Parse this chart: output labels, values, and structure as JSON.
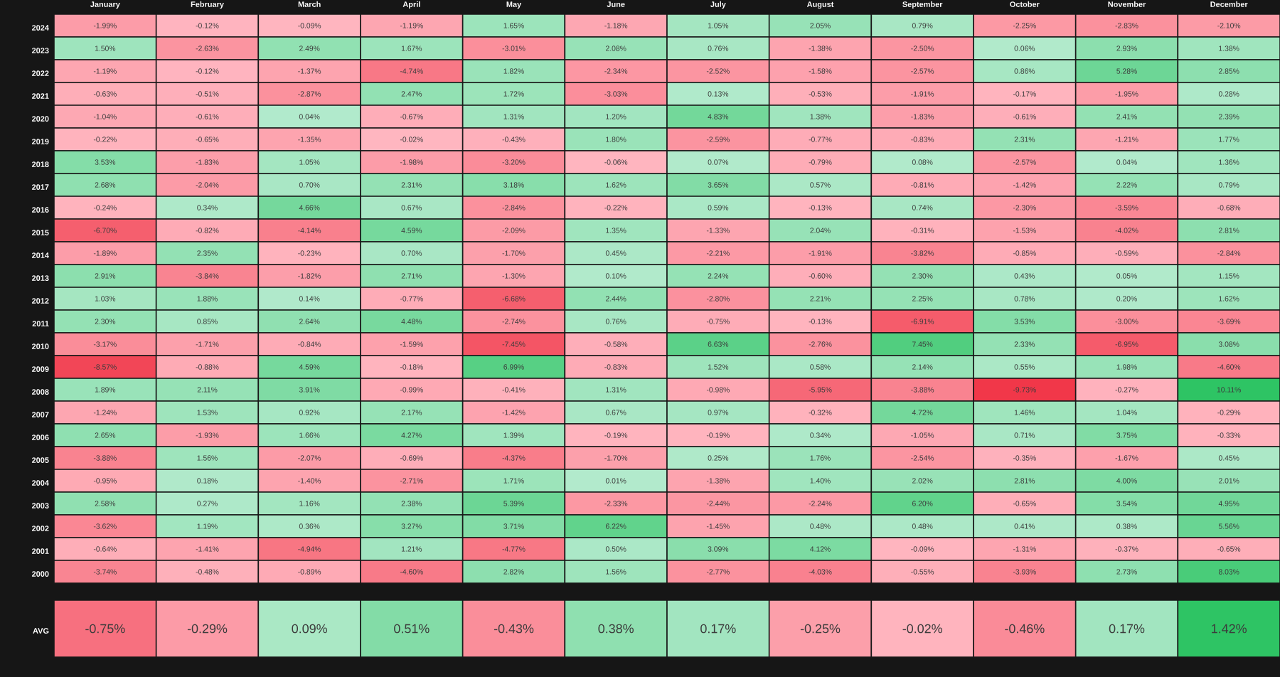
{
  "chart_data": [
    {
      "type": "heatmap",
      "categories": [
        "January",
        "February",
        "March",
        "April",
        "May",
        "June",
        "July",
        "August",
        "September",
        "October",
        "November",
        "December"
      ],
      "y_categories": [
        "2024",
        "2023",
        "2022",
        "2021",
        "2020",
        "2019",
        "2018",
        "2017",
        "2016",
        "2015",
        "2014",
        "2013",
        "2012",
        "2011",
        "2010",
        "2009",
        "2008",
        "2007",
        "2006",
        "2005",
        "2004",
        "2003",
        "2002",
        "2001",
        "2000"
      ],
      "cells": [
        [
          -1.99,
          -0.12,
          -0.09,
          -1.19,
          1.65,
          -1.18,
          1.05,
          2.05,
          0.79,
          -2.25,
          -2.83,
          -2.1
        ],
        [
          1.5,
          -2.63,
          2.49,
          1.67,
          -3.01,
          2.08,
          0.76,
          -1.38,
          -2.5,
          0.06,
          2.93,
          1.38
        ],
        [
          -1.19,
          -0.12,
          -1.37,
          -4.74,
          1.82,
          -2.34,
          -2.52,
          -1.58,
          -2.57,
          0.86,
          5.28,
          2.85
        ],
        [
          -0.63,
          -0.51,
          -2.87,
          2.47,
          1.72,
          -3.03,
          0.13,
          -0.53,
          -1.91,
          -0.17,
          -1.95,
          0.28
        ],
        [
          -1.04,
          -0.61,
          0.04,
          -0.67,
          1.31,
          1.2,
          4.83,
          1.38,
          -1.83,
          -0.61,
          2.41,
          2.39
        ],
        [
          -0.22,
          -0.65,
          -1.35,
          -0.02,
          -0.43,
          1.8,
          -2.59,
          -0.77,
          -0.83,
          2.31,
          -1.21,
          1.77
        ],
        [
          3.53,
          -1.83,
          1.05,
          -1.98,
          -3.2,
          -0.06,
          0.07,
          -0.79,
          0.08,
          -2.57,
          0.04,
          1.36
        ],
        [
          2.68,
          -2.04,
          0.7,
          2.31,
          3.18,
          1.62,
          3.65,
          0.57,
          -0.81,
          -1.42,
          2.22,
          0.79
        ],
        [
          -0.24,
          0.34,
          4.66,
          0.67,
          -2.84,
          -0.22,
          0.59,
          -0.13,
          0.74,
          -2.3,
          -3.59,
          -0.68
        ],
        [
          -6.7,
          -0.82,
          -4.14,
          4.59,
          -2.09,
          1.35,
          -1.33,
          2.04,
          -0.31,
          -1.53,
          -4.02,
          2.81
        ],
        [
          -1.89,
          2.35,
          -0.23,
          0.7,
          -1.7,
          0.45,
          -2.21,
          -1.91,
          -3.82,
          -0.85,
          -0.59,
          -2.84
        ],
        [
          2.91,
          -3.84,
          -1.82,
          2.71,
          -1.3,
          0.1,
          2.24,
          -0.6,
          2.3,
          0.43,
          0.05,
          1.15
        ],
        [
          1.03,
          1.88,
          0.14,
          -0.77,
          -6.68,
          2.44,
          -2.8,
          2.21,
          2.25,
          0.78,
          0.2,
          1.62
        ],
        [
          2.3,
          0.85,
          2.64,
          4.48,
          -2.74,
          0.76,
          -0.75,
          -0.13,
          -6.91,
          3.53,
          -3.0,
          -3.69
        ],
        [
          -3.17,
          -1.71,
          -0.84,
          -1.59,
          -7.45,
          -0.58,
          6.63,
          -2.76,
          7.45,
          2.33,
          -6.95,
          3.08
        ],
        [
          -8.57,
          -0.88,
          4.59,
          -0.18,
          6.99,
          -0.83,
          1.52,
          0.58,
          2.14,
          0.55,
          1.98,
          -4.6
        ],
        [
          1.89,
          2.11,
          3.91,
          -0.99,
          -0.41,
          1.31,
          -0.98,
          -5.95,
          -3.88,
          -9.73,
          -0.27,
          10.11
        ],
        [
          -1.24,
          1.53,
          0.92,
          2.17,
          -1.42,
          0.67,
          0.97,
          -0.32,
          4.72,
          1.46,
          1.04,
          -0.29
        ],
        [
          2.65,
          -1.93,
          1.66,
          4.27,
          1.39,
          -0.19,
          -0.19,
          0.34,
          -1.05,
          0.71,
          3.75,
          -0.33
        ],
        [
          -3.88,
          1.56,
          -2.07,
          -0.69,
          -4.37,
          -1.7,
          0.25,
          1.76,
          -2.54,
          -0.35,
          -1.67,
          0.45
        ],
        [
          -0.95,
          0.18,
          -1.4,
          -2.71,
          1.71,
          0.01,
          -1.38,
          1.4,
          2.02,
          2.81,
          4.0,
          2.01
        ],
        [
          2.58,
          0.27,
          1.16,
          2.38,
          5.39,
          -2.33,
          -2.44,
          -2.24,
          6.2,
          -0.65,
          3.54,
          4.95
        ],
        [
          -3.62,
          1.19,
          0.36,
          3.27,
          3.71,
          6.22,
          -1.45,
          0.48,
          0.48,
          0.41,
          0.38,
          5.56
        ],
        [
          -0.64,
          -1.41,
          -4.94,
          1.21,
          -4.77,
          0.5,
          3.09,
          4.12,
          -0.09,
          -1.31,
          -0.37,
          -0.65
        ],
        [
          -3.74,
          -0.48,
          -0.89,
          -4.6,
          2.82,
          1.56,
          -2.77,
          -4.03,
          -0.55,
          -3.93,
          2.73,
          8.03
        ]
      ],
      "cell_labels": [
        [
          "-1.99%",
          "-0.12%",
          "-0.09%",
          "-1.19%",
          "1.65%",
          "-1.18%",
          "1.05%",
          "2.05%",
          "0.79%",
          "-2.25%",
          "-2.83%",
          "-2.10%"
        ],
        [
          "1.50%",
          "-2.63%",
          "2.49%",
          "1.67%",
          "-3.01%",
          "2.08%",
          "0.76%",
          "-1.38%",
          "-2.50%",
          "0.06%",
          "2.93%",
          "1.38%"
        ],
        [
          "-1.19%",
          "-0.12%",
          "-1.37%",
          "-4.74%",
          "1.82%",
          "-2.34%",
          "-2.52%",
          "-1.58%",
          "-2.57%",
          "0.86%",
          "5.28%",
          "2.85%"
        ],
        [
          "-0.63%",
          "-0.51%",
          "-2.87%",
          "2.47%",
          "1.72%",
          "-3.03%",
          "0.13%",
          "-0.53%",
          "-1.91%",
          "-0.17%",
          "-1.95%",
          "0.28%"
        ],
        [
          "-1.04%",
          "-0.61%",
          "0.04%",
          "-0.67%",
          "1.31%",
          "1.20%",
          "4.83%",
          "1.38%",
          "-1.83%",
          "-0.61%",
          "2.41%",
          "2.39%"
        ],
        [
          "-0.22%",
          "-0.65%",
          "-1.35%",
          "-0.02%",
          "-0.43%",
          "1.80%",
          "-2.59%",
          "-0.77%",
          "-0.83%",
          "2.31%",
          "-1.21%",
          "1.77%"
        ],
        [
          "3.53%",
          "-1.83%",
          "1.05%",
          "-1.98%",
          "-3.20%",
          "-0.06%",
          "0.07%",
          "-0.79%",
          "0.08%",
          "-2.57%",
          "0.04%",
          "1.36%"
        ],
        [
          "2.68%",
          "-2.04%",
          "0.70%",
          "2.31%",
          "3.18%",
          "1.62%",
          "3.65%",
          "0.57%",
          "-0.81%",
          "-1.42%",
          "2.22%",
          "0.79%"
        ],
        [
          "-0.24%",
          "0.34%",
          "4.66%",
          "0.67%",
          "-2.84%",
          "-0.22%",
          "0.59%",
          "-0.13%",
          "0.74%",
          "-2.30%",
          "-3.59%",
          "-0.68%"
        ],
        [
          "-6.70%",
          "-0.82%",
          "-4.14%",
          "4.59%",
          "-2.09%",
          "1.35%",
          "-1.33%",
          "2.04%",
          "-0.31%",
          "-1.53%",
          "-4.02%",
          "2.81%"
        ],
        [
          "-1.89%",
          "2.35%",
          "-0.23%",
          "0.70%",
          "-1.70%",
          "0.45%",
          "-2.21%",
          "-1.91%",
          "-3.82%",
          "-0.85%",
          "-0.59%",
          "-2.84%"
        ],
        [
          "2.91%",
          "-3.84%",
          "-1.82%",
          "2.71%",
          "-1.30%",
          "0.10%",
          "2.24%",
          "-0.60%",
          "2.30%",
          "0.43%",
          "0.05%",
          "1.15%"
        ],
        [
          "1.03%",
          "1.88%",
          "0.14%",
          "-0.77%",
          "-6.68%",
          "2.44%",
          "-2.80%",
          "2.21%",
          "2.25%",
          "0.78%",
          "0.20%",
          "1.62%"
        ],
        [
          "2.30%",
          "0.85%",
          "2.64%",
          "4.48%",
          "-2.74%",
          "0.76%",
          "-0.75%",
          "-0.13%",
          "-6.91%",
          "3.53%",
          "-3.00%",
          "-3.69%"
        ],
        [
          "-3.17%",
          "-1.71%",
          "-0.84%",
          "-1.59%",
          "-7.45%",
          "-0.58%",
          "6.63%",
          "-2.76%",
          "7.45%",
          "2.33%",
          "-6.95%",
          "3.08%"
        ],
        [
          "-8.57%",
          "-0.88%",
          "4.59%",
          "-0.18%",
          "6.99%",
          "-0.83%",
          "1.52%",
          "0.58%",
          "2.14%",
          "0.55%",
          "1.98%",
          "-4.60%"
        ],
        [
          "1.89%",
          "2.11%",
          "3.91%",
          "-0.99%",
          "-0.41%",
          "1.31%",
          "-0.98%",
          "-5.95%",
          "-3.88%",
          "-9.73%",
          "-0.27%",
          "10.11%"
        ],
        [
          "-1.24%",
          "1.53%",
          "0.92%",
          "2.17%",
          "-1.42%",
          "0.67%",
          "0.97%",
          "-0.32%",
          "4.72%",
          "1.46%",
          "1.04%",
          "-0.29%"
        ],
        [
          "2.65%",
          "-1.93%",
          "1.66%",
          "4.27%",
          "1.39%",
          "-0.19%",
          "-0.19%",
          "0.34%",
          "-1.05%",
          "0.71%",
          "3.75%",
          "-0.33%"
        ],
        [
          "-3.88%",
          "1.56%",
          "-2.07%",
          "-0.69%",
          "-4.37%",
          "-1.70%",
          "0.25%",
          "1.76%",
          "-2.54%",
          "-0.35%",
          "-1.67%",
          "0.45%"
        ],
        [
          "-0.95%",
          "0.18%",
          "-1.40%",
          "-2.71%",
          "1.71%",
          "0.01%",
          "-1.38%",
          "1.40%",
          "2.02%",
          "2.81%",
          "4.00%",
          "2.01%"
        ],
        [
          "2.58%",
          "0.27%",
          "1.16%",
          "2.38%",
          "5.39%",
          "-2.33%",
          "-2.44%",
          "-2.24%",
          "6.20%",
          "-0.65%",
          "3.54%",
          "4.95%"
        ],
        [
          "-3.62%",
          "1.19%",
          "0.36%",
          "3.27%",
          "3.71%",
          "6.22%",
          "-1.45%",
          "0.48%",
          "0.48%",
          "0.41%",
          "0.38%",
          "5.56%"
        ],
        [
          "-0.64%",
          "-1.41%",
          "-4.94%",
          "1.21%",
          "-4.77%",
          "0.50%",
          "3.09%",
          "4.12%",
          "-0.09%",
          "-1.31%",
          "-0.37%",
          "-0.65%"
        ],
        [
          "-3.74%",
          "-0.48%",
          "-0.89%",
          "-4.60%",
          "2.82%",
          "1.56%",
          "-2.77%",
          "-4.03%",
          "-0.55%",
          "-3.93%",
          "2.73%",
          "8.03%"
        ]
      ]
    },
    {
      "type": "heatmap",
      "categories": [
        null,
        null,
        null,
        null,
        null,
        null,
        null,
        null,
        null,
        null,
        null,
        null
      ],
      "y_categories": [
        "AVG"
      ],
      "cells": [
        [
          -0.75,
          -0.29,
          0.09,
          0.51,
          -0.43,
          0.38,
          0.17,
          -0.25,
          -0.02,
          -0.46,
          0.17,
          1.42
        ]
      ],
      "cell_labels": [
        [
          "-0.75%",
          "-0.29%",
          "0.09%",
          "0.51%",
          "-0.43%",
          "0.38%",
          "0.17%",
          "-0.25%",
          "-0.02%",
          "-0.46%",
          "0.17%",
          "1.42%"
        ]
      ],
      "tick_labels": "y"
    }
  ]
}
